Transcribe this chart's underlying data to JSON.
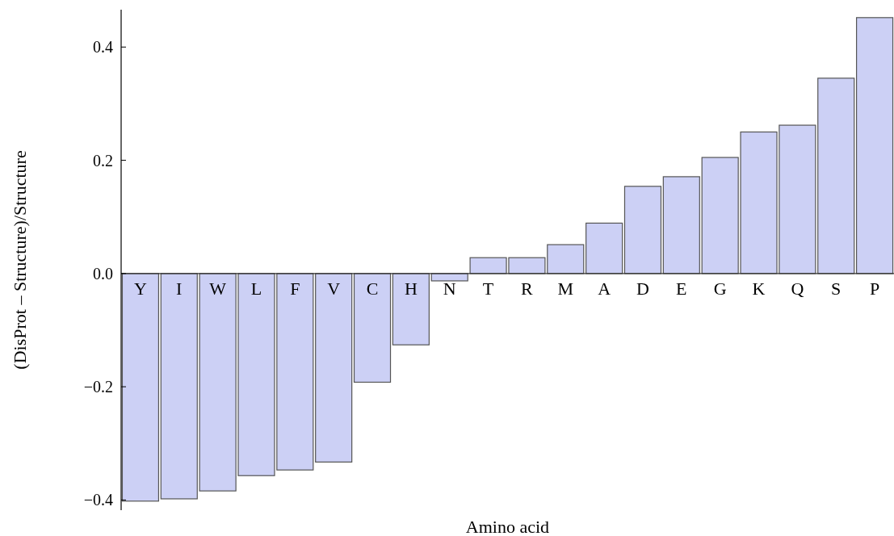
{
  "chart_data": {
    "type": "bar",
    "xlabel": "Amino acid",
    "ylabel": "(DisProt – Structure)/Structure",
    "categories": [
      "Y",
      "I",
      "W",
      "L",
      "F",
      "V",
      "C",
      "H",
      "N",
      "T",
      "R",
      "M",
      "A",
      "D",
      "E",
      "G",
      "K",
      "Q",
      "S",
      "P"
    ],
    "values": [
      -0.402,
      -0.398,
      -0.384,
      -0.357,
      -0.347,
      -0.333,
      -0.192,
      -0.126,
      -0.013,
      0.028,
      0.028,
      0.051,
      0.089,
      0.154,
      0.171,
      0.205,
      0.25,
      0.262,
      0.345,
      0.452
    ],
    "color": "#ccd0f5",
    "ylim": [
      -0.418,
      0.466
    ],
    "yticks": [
      {
        "value": -0.4,
        "label": "−0.4"
      },
      {
        "value": -0.2,
        "label": "−0.2"
      },
      {
        "value": 0,
        "label": "0.0"
      },
      {
        "value": 0.2,
        "label": "0.2"
      },
      {
        "value": 0.4,
        "label": "0.4"
      }
    ],
    "grid": false
  }
}
